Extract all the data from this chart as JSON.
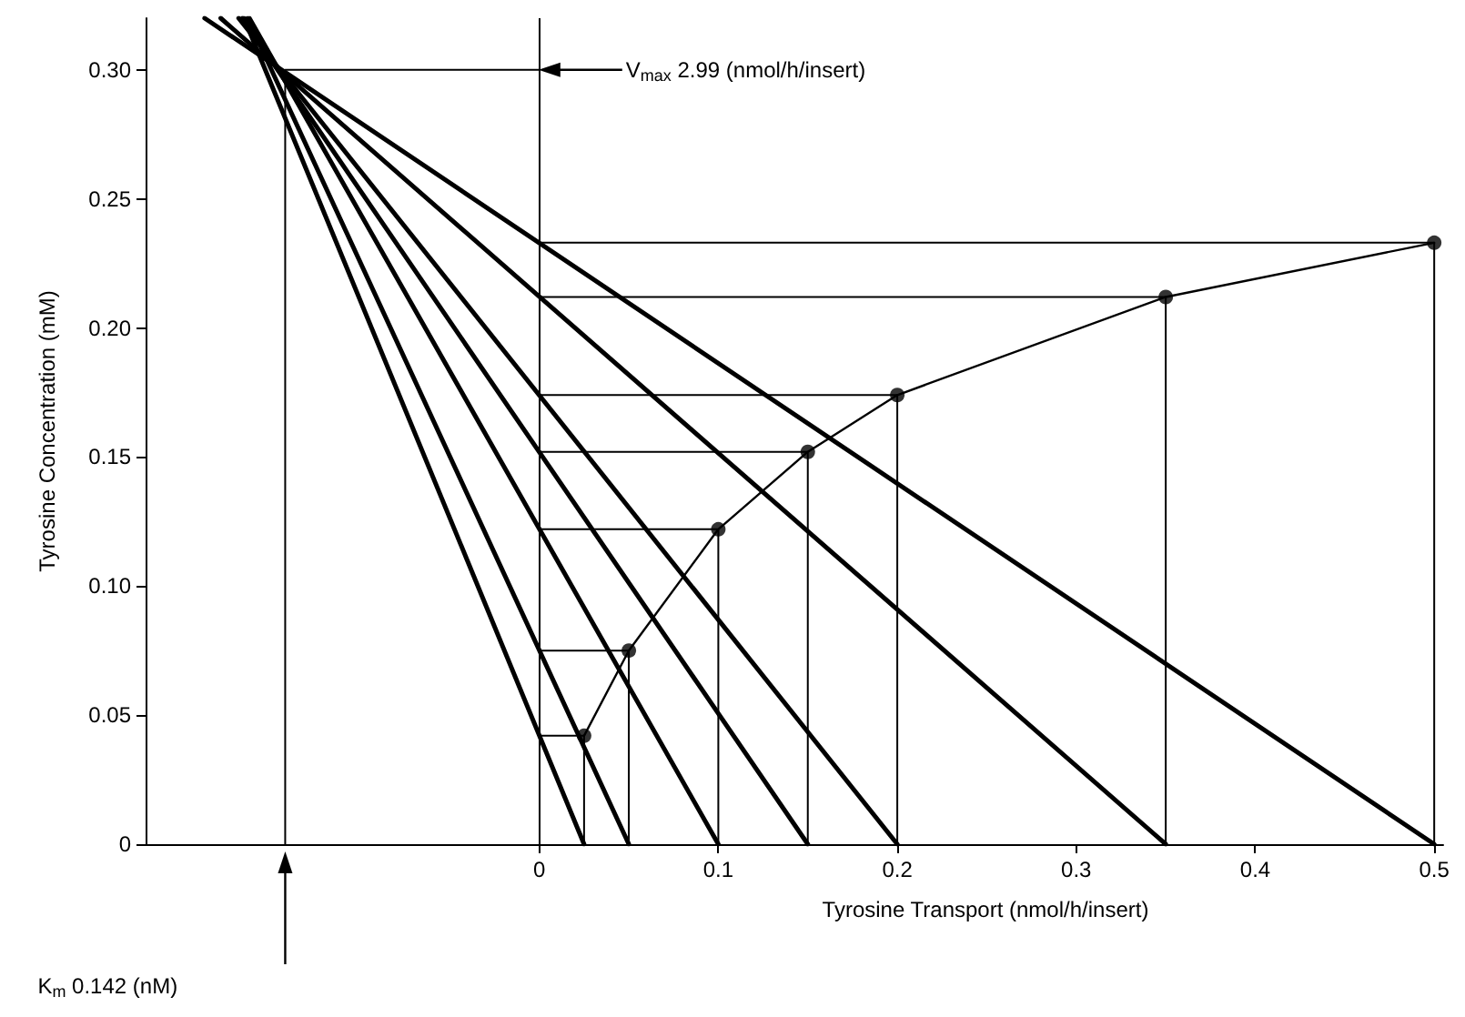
{
  "chart_data": {
    "type": "line",
    "xlabel": "Tyrosine Transport (nmol/h/insert)",
    "ylabel": "Tyrosine Concentration (mM)",
    "xlim": [
      -0.22,
      0.505
    ],
    "xticks": [
      0,
      0.1,
      0.2,
      0.3,
      0.4,
      0.5
    ],
    "ylim": [
      0,
      0.32
    ],
    "yticks": [
      {
        "value": 0,
        "label": "0"
      },
      0.05,
      {
        "value": 0.1,
        "label": "0.10"
      },
      0.15,
      {
        "value": 0.2,
        "label": "0.20"
      },
      0.25,
      {
        "value": 0.3,
        "label": "0.30"
      }
    ],
    "line_style": "solid",
    "series": [
      {
        "color": "#000000",
        "x": [
          -0.165,
          0.025
        ],
        "values": [
          0.32,
          0
        ]
      },
      {
        "color": "#000000",
        "x": [
          -0.163,
          0.05
        ],
        "values": [
          0.32,
          0
        ]
      },
      {
        "color": "#000000",
        "x": [
          -0.162,
          0.1
        ],
        "values": [
          0.32,
          0
        ]
      },
      {
        "color": "#000000",
        "x": [
          -0.166,
          0.15
        ],
        "values": [
          0.32,
          0
        ]
      },
      {
        "color": "#000000",
        "x": [
          -0.168,
          0.2
        ],
        "values": [
          0.32,
          0
        ]
      },
      {
        "color": "#000000",
        "x": [
          -0.178,
          0.35
        ],
        "values": [
          0.32,
          0
        ]
      },
      {
        "color": "#000000",
        "x": [
          -0.187,
          0.5
        ],
        "values": [
          0.32,
          0
        ]
      },
      {
        "color": "#000000",
        "x": [
          0,
          0.025,
          0.025
        ],
        "values": [
          0.042,
          0.042,
          0
        ]
      },
      {
        "color": "#000000",
        "x": [
          0,
          0.05,
          0.05
        ],
        "values": [
          0.075,
          0.075,
          0
        ]
      },
      {
        "color": "#000000",
        "x": [
          0,
          0.1,
          0.1
        ],
        "values": [
          0.122,
          0.122,
          0
        ]
      },
      {
        "color": "#000000",
        "x": [
          0,
          0.15,
          0.15
        ],
        "values": [
          0.152,
          0.152,
          0
        ]
      },
      {
        "color": "#000000",
        "x": [
          0,
          0.2,
          0.2
        ],
        "values": [
          0.174,
          0.174,
          0
        ]
      },
      {
        "color": "#000000",
        "x": [
          0,
          0.35,
          0.35
        ],
        "values": [
          0.212,
          0.212,
          0
        ]
      },
      {
        "color": "#000000",
        "x": [
          0,
          0.5,
          0.5
        ],
        "values": [
          0.233,
          0.233,
          0
        ]
      },
      {
        "color": "#000000",
        "x": [
          -0.142,
          -0.142,
          0
        ],
        "values": [
          0,
          0.3,
          0.3
        ]
      },
      {
        "color": "#000000",
        "x": [
          0.025,
          0.05,
          0.1,
          0.15,
          0.2,
          0.35,
          0.5
        ],
        "values": [
          0.042,
          0.075,
          0.122,
          0.152,
          0.174,
          0.212,
          0.233
        ]
      },
      {
        "type": "scatter",
        "color": "#000000",
        "marker": "circle",
        "x": [
          0.025,
          0.05,
          0.1,
          0.15,
          0.2,
          0.35,
          0.5
        ],
        "values": [
          0.042,
          0.075,
          0.122,
          0.152,
          0.174,
          0.212,
          0.233
        ]
      }
    ],
    "ref_lines": [
      {
        "axis": "x",
        "value": 0,
        "color": "#000000",
        "line_style": "solid"
      }
    ],
    "annotations": [
      "V$_{max}$ 2.99 (nmol/h/insert)",
      "K$_{m}$ 0.142 (nM)"
    ]
  }
}
